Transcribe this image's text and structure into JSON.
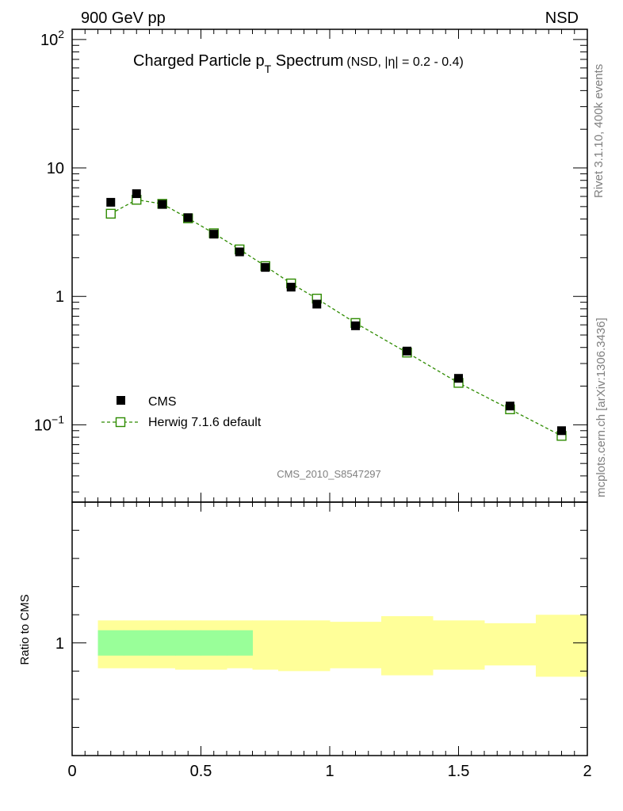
{
  "header": {
    "left": "900 GeV pp",
    "right": "NSD"
  },
  "side_labels": {
    "rivet": "Rivet 3.1.10,  400k events",
    "mcplots": "mcplots.cern.ch [arXiv:1306.3436]"
  },
  "title": {
    "main_pre": "Charged Particle p",
    "main_sub": "T",
    "main_post": " Spectrum",
    "qualifier": "(NSD, |η| = 0.2 - 0.4)"
  },
  "watermark": "CMS_2010_S8547297",
  "colors": {
    "data": "#000000",
    "mc": "#2e8b00",
    "band_outer": "#ffff99",
    "band_inner": "#99ff99"
  },
  "chart_data": {
    "type": "scatter",
    "x_ticks": [
      "0",
      "0.5",
      "1",
      "1.5",
      "2"
    ],
    "xlim": [
      0,
      2
    ],
    "y_scale": "log",
    "ylim": [
      0.025,
      120
    ],
    "y_ticks": [
      {
        "value": 100,
        "base": "10",
        "exp": "2"
      },
      {
        "value": 10,
        "base": "10",
        "exp": ""
      },
      {
        "value": 1,
        "base": "1",
        "exp": ""
      },
      {
        "value": 0.1,
        "base": "10",
        "exp": "−1"
      }
    ],
    "legend": {
      "position": "lower-left",
      "entries": [
        "CMS",
        "Herwig 7.1.6 default"
      ]
    },
    "series": [
      {
        "name": "CMS",
        "marker": "filled-square",
        "x": [
          0.15,
          0.25,
          0.35,
          0.45,
          0.55,
          0.65,
          0.75,
          0.85,
          0.95,
          1.1,
          1.3,
          1.5,
          1.7,
          1.9
        ],
        "y": [
          5.4,
          6.3,
          5.2,
          4.1,
          3.05,
          2.22,
          1.68,
          1.18,
          0.87,
          0.59,
          0.375,
          0.23,
          0.14,
          0.09
        ]
      },
      {
        "name": "Herwig 7.1.6 default",
        "marker": "open-square",
        "line": "dashed",
        "x": [
          0.15,
          0.25,
          0.35,
          0.45,
          0.55,
          0.65,
          0.75,
          0.85,
          0.95,
          1.1,
          1.3,
          1.5,
          1.7,
          1.9
        ],
        "y": [
          4.4,
          5.65,
          5.25,
          4.05,
          3.1,
          2.32,
          1.72,
          1.26,
          0.96,
          0.62,
          0.365,
          0.212,
          0.132,
          0.082
        ]
      }
    ],
    "ratio": {
      "ylabel": "Ratio to CMS",
      "y_tick": "1",
      "ylim": [
        0.6,
        1.5
      ],
      "bins_x": [
        [
          0.1,
          0.2
        ],
        [
          0.2,
          0.3
        ],
        [
          0.3,
          0.4
        ],
        [
          0.4,
          0.5
        ],
        [
          0.5,
          0.6
        ],
        [
          0.6,
          0.7
        ],
        [
          0.7,
          0.8
        ],
        [
          0.8,
          0.9
        ],
        [
          0.9,
          1.0
        ],
        [
          1.0,
          1.2
        ],
        [
          1.2,
          1.4
        ],
        [
          1.4,
          1.6
        ],
        [
          1.6,
          1.8
        ],
        [
          1.8,
          2.0
        ]
      ],
      "outer_band": [
        [
          0.91,
          1.08
        ],
        [
          0.91,
          1.08
        ],
        [
          0.91,
          1.08
        ],
        [
          0.905,
          1.08
        ],
        [
          0.905,
          1.08
        ],
        [
          0.91,
          1.08
        ],
        [
          0.905,
          1.08
        ],
        [
          0.9,
          1.08
        ],
        [
          0.9,
          1.08
        ],
        [
          0.91,
          1.075
        ],
        [
          0.885,
          1.095
        ],
        [
          0.905,
          1.08
        ],
        [
          0.92,
          1.07
        ],
        [
          0.88,
          1.1
        ]
      ],
      "inner_band": [
        [
          0.955,
          1.045
        ],
        [
          0.955,
          1.045
        ],
        [
          0.955,
          1.045
        ],
        [
          0.955,
          1.045
        ],
        [
          0.955,
          1.045
        ],
        [
          0.955,
          1.045
        ],
        null,
        null,
        null,
        null,
        null,
        null,
        null,
        null
      ]
    }
  }
}
